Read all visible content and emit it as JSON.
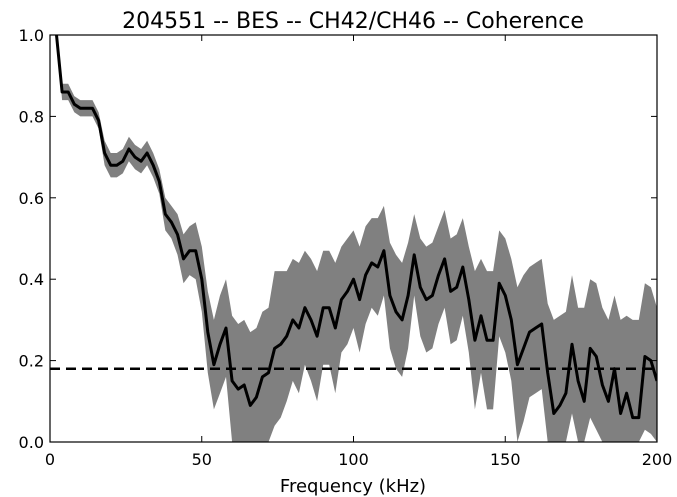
{
  "chart_data": {
    "type": "line",
    "title": "204551 -- BES -- CH42/CH46 -- Coherence",
    "xlabel": "Frequency (kHz)",
    "ylabel": "",
    "xlim": [
      0,
      200
    ],
    "ylim": [
      0.0,
      1.0
    ],
    "x_ticks": [
      "0",
      "50",
      "100",
      "150",
      "200"
    ],
    "y_ticks": [
      "0.0",
      "0.2",
      "0.4",
      "0.6",
      "0.8",
      "1.0"
    ],
    "grid": false,
    "legend": "none",
    "colors": {
      "line": "#000000",
      "band": "#808080",
      "threshold": "#000000"
    },
    "series": [
      {
        "x": [
          2,
          4,
          6,
          8,
          10,
          12,
          14,
          16,
          18,
          20,
          22,
          24,
          26,
          28,
          30,
          32,
          34,
          36,
          38,
          40,
          42,
          44,
          46,
          48,
          50,
          52,
          54,
          56,
          58,
          60,
          62,
          64,
          66,
          68,
          70,
          72,
          74,
          76,
          78,
          80,
          82,
          84,
          86,
          88,
          90,
          92,
          94,
          96,
          98,
          100,
          102,
          104,
          106,
          108,
          110,
          112,
          114,
          116,
          118,
          120,
          122,
          124,
          126,
          128,
          130,
          132,
          134,
          136,
          138,
          140,
          142,
          144,
          146,
          148,
          150,
          152,
          154,
          156,
          158,
          160,
          162,
          164,
          166,
          168,
          170,
          172,
          174,
          176,
          178,
          180,
          182,
          184,
          186,
          188,
          190,
          192,
          194,
          196,
          198,
          200
        ],
        "values": [
          1.01,
          0.86,
          0.86,
          0.83,
          0.82,
          0.82,
          0.82,
          0.79,
          0.71,
          0.68,
          0.68,
          0.69,
          0.72,
          0.7,
          0.69,
          0.71,
          0.68,
          0.64,
          0.56,
          0.54,
          0.51,
          0.45,
          0.47,
          0.47,
          0.4,
          0.27,
          0.19,
          0.24,
          0.28,
          0.15,
          0.13,
          0.14,
          0.09,
          0.11,
          0.16,
          0.17,
          0.23,
          0.24,
          0.26,
          0.3,
          0.28,
          0.33,
          0.3,
          0.26,
          0.33,
          0.33,
          0.28,
          0.35,
          0.37,
          0.4,
          0.35,
          0.41,
          0.44,
          0.43,
          0.47,
          0.36,
          0.32,
          0.3,
          0.36,
          0.46,
          0.38,
          0.35,
          0.36,
          0.41,
          0.45,
          0.37,
          0.38,
          0.43,
          0.35,
          0.25,
          0.31,
          0.25,
          0.25,
          0.39,
          0.36,
          0.3,
          0.19,
          0.23,
          0.27,
          0.28,
          0.29,
          0.17,
          0.07,
          0.09,
          0.12,
          0.24,
          0.15,
          0.1,
          0.23,
          0.21,
          0.14,
          0.1,
          0.18,
          0.07,
          0.12,
          0.06,
          0.06,
          0.21,
          0.2,
          0.15
        ],
        "lower": [
          1.01,
          0.84,
          0.84,
          0.81,
          0.8,
          0.8,
          0.8,
          0.77,
          0.68,
          0.65,
          0.65,
          0.66,
          0.69,
          0.67,
          0.66,
          0.68,
          0.65,
          0.61,
          0.52,
          0.5,
          0.46,
          0.39,
          0.41,
          0.4,
          0.32,
          0.17,
          0.08,
          0.12,
          0.16,
          0.0,
          0.0,
          0.0,
          0.0,
          0.0,
          0.0,
          0.0,
          0.04,
          0.06,
          0.1,
          0.15,
          0.12,
          0.19,
          0.15,
          0.1,
          0.19,
          0.19,
          0.12,
          0.22,
          0.24,
          0.28,
          0.22,
          0.29,
          0.33,
          0.31,
          0.36,
          0.23,
          0.18,
          0.16,
          0.23,
          0.36,
          0.26,
          0.22,
          0.23,
          0.29,
          0.33,
          0.24,
          0.25,
          0.31,
          0.22,
          0.08,
          0.17,
          0.08,
          0.08,
          0.26,
          0.22,
          0.15,
          0.0,
          0.05,
          0.11,
          0.12,
          0.13,
          0.0,
          0.0,
          0.0,
          0.0,
          0.07,
          0.0,
          0.0,
          0.06,
          0.03,
          0.0,
          0.0,
          0.0,
          0.0,
          0.0,
          0.0,
          0.0,
          0.03,
          0.02,
          0.0
        ],
        "upper": [
          1.01,
          0.88,
          0.88,
          0.85,
          0.84,
          0.84,
          0.84,
          0.81,
          0.74,
          0.71,
          0.71,
          0.72,
          0.75,
          0.73,
          0.72,
          0.74,
          0.71,
          0.67,
          0.6,
          0.58,
          0.56,
          0.51,
          0.53,
          0.54,
          0.48,
          0.37,
          0.3,
          0.36,
          0.4,
          0.31,
          0.29,
          0.3,
          0.27,
          0.28,
          0.32,
          0.33,
          0.42,
          0.42,
          0.42,
          0.45,
          0.44,
          0.47,
          0.45,
          0.42,
          0.47,
          0.47,
          0.44,
          0.48,
          0.5,
          0.52,
          0.48,
          0.53,
          0.55,
          0.55,
          0.58,
          0.49,
          0.46,
          0.44,
          0.49,
          0.56,
          0.5,
          0.48,
          0.49,
          0.53,
          0.57,
          0.5,
          0.51,
          0.55,
          0.48,
          0.42,
          0.45,
          0.42,
          0.42,
          0.52,
          0.5,
          0.45,
          0.38,
          0.41,
          0.43,
          0.44,
          0.45,
          0.34,
          0.3,
          0.31,
          0.32,
          0.41,
          0.33,
          0.33,
          0.4,
          0.39,
          0.33,
          0.3,
          0.36,
          0.3,
          0.31,
          0.3,
          0.3,
          0.39,
          0.38,
          0.33
        ]
      }
    ],
    "threshold": 0.18
  }
}
